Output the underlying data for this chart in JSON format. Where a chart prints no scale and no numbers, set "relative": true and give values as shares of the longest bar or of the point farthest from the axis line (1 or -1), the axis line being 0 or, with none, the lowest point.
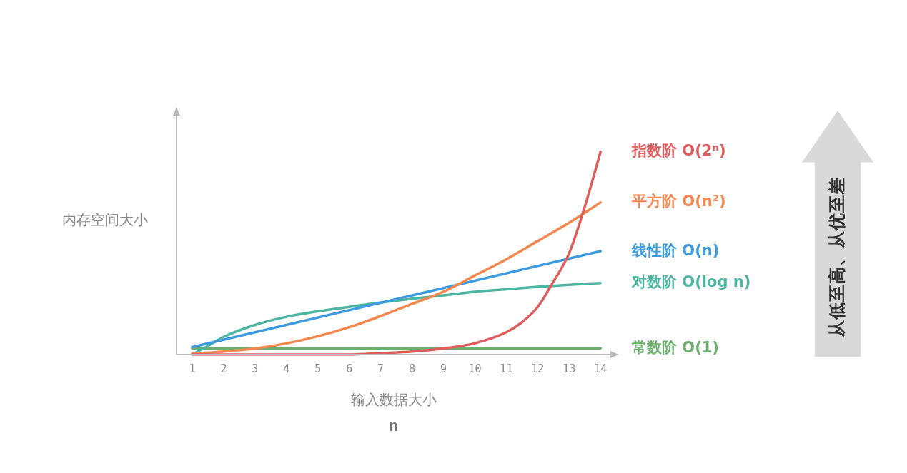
{
  "chart_data": {
    "type": "line",
    "relative": true,
    "xlabel": "输入数据大小",
    "ylabel": "内存空间大小",
    "annotations": [
      "从低至高、从优至差",
      "n"
    ],
    "xlim": [
      0.5,
      14.45
    ],
    "xticks": [
      1,
      2,
      3,
      4,
      5,
      6,
      7,
      8,
      9,
      10,
      11,
      12,
      13,
      14
    ],
    "grid": false,
    "legend": false,
    "marker": "none",
    "line_style": "solid",
    "series": [
      {
        "name": "指数阶 O(2ⁿ)",
        "color": "#e05c5c",
        "x": [
          1,
          2,
          3,
          4,
          5,
          6,
          7,
          8,
          9,
          10,
          11,
          11.5,
          12,
          12.5,
          13,
          13.5,
          14
        ],
        "values": [
          0,
          0,
          0,
          0,
          0,
          0,
          0.007,
          0.015,
          0.03,
          0.056,
          0.11,
          0.16,
          0.235,
          0.36,
          0.5,
          0.73,
          1
        ]
      },
      {
        "name": "平方阶 O(n²)",
        "color": "#f4874e",
        "x": [
          1,
          2,
          3,
          4,
          5,
          6,
          7,
          8,
          9,
          10,
          11,
          12,
          13,
          14
        ],
        "values": [
          0.005,
          0.015,
          0.03,
          0.055,
          0.09,
          0.135,
          0.19,
          0.25,
          0.31,
          0.39,
          0.47,
          0.56,
          0.65,
          0.75
        ]
      },
      {
        "name": "线性阶 O(n)",
        "color": "#3d9be0",
        "x": [
          1,
          14
        ],
        "values": [
          0.037,
          0.51
        ]
      },
      {
        "name": "对数阶 O(log n)",
        "color": "#4db6a0",
        "x": [
          1,
          1.5,
          2,
          3,
          4,
          5,
          6,
          7,
          8,
          9,
          10,
          11,
          12,
          13,
          14
        ],
        "values": [
          0,
          0.043,
          0.087,
          0.146,
          0.186,
          0.213,
          0.235,
          0.257,
          0.275,
          0.292,
          0.31,
          0.322,
          0.334,
          0.344,
          0.353
        ]
      },
      {
        "name": "常数阶 O(1)",
        "color": "#6db06d",
        "x": [
          1,
          14
        ],
        "values": [
          0.031,
          0.031
        ]
      }
    ]
  }
}
